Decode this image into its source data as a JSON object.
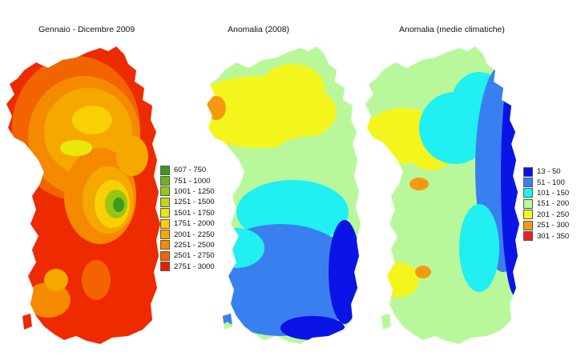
{
  "maps": [
    {
      "title": "Gennaio - Dicembre 2009",
      "legend": [
        {
          "label": "607 - 750",
          "color": "#3c9a1e"
        },
        {
          "label": "751 - 1000",
          "color": "#6ab51c"
        },
        {
          "label": "1001 - 1250",
          "color": "#99c515"
        },
        {
          "label": "1251 - 1500",
          "color": "#c3d60f"
        },
        {
          "label": "1501 - 1750",
          "color": "#eae80a"
        },
        {
          "label": "1751 - 2000",
          "color": "#f8d005"
        },
        {
          "label": "2001 - 2250",
          "color": "#f5a800"
        },
        {
          "label": "2251 - 2500",
          "color": "#f58a00"
        },
        {
          "label": "2501 - 2750",
          "color": "#f26400"
        },
        {
          "label": "2751 - 3000",
          "color": "#ee1f00"
        }
      ]
    },
    {
      "title": "Anomalia (2008)"
    },
    {
      "title": "Anomalia (medie climatiche)",
      "legend": [
        {
          "label": "13 - 50",
          "color": "#0a14e6"
        },
        {
          "label": "51 - 100",
          "color": "#3a7ff0"
        },
        {
          "label": "101 - 150",
          "color": "#20f0f2"
        },
        {
          "label": "151 - 200",
          "color": "#b8f89a"
        },
        {
          "label": "201 - 250",
          "color": "#f5f51e"
        },
        {
          "label": "251 - 300",
          "color": "#f59a10"
        },
        {
          "label": "301 - 350",
          "color": "#ee1e1e"
        }
      ]
    }
  ]
}
